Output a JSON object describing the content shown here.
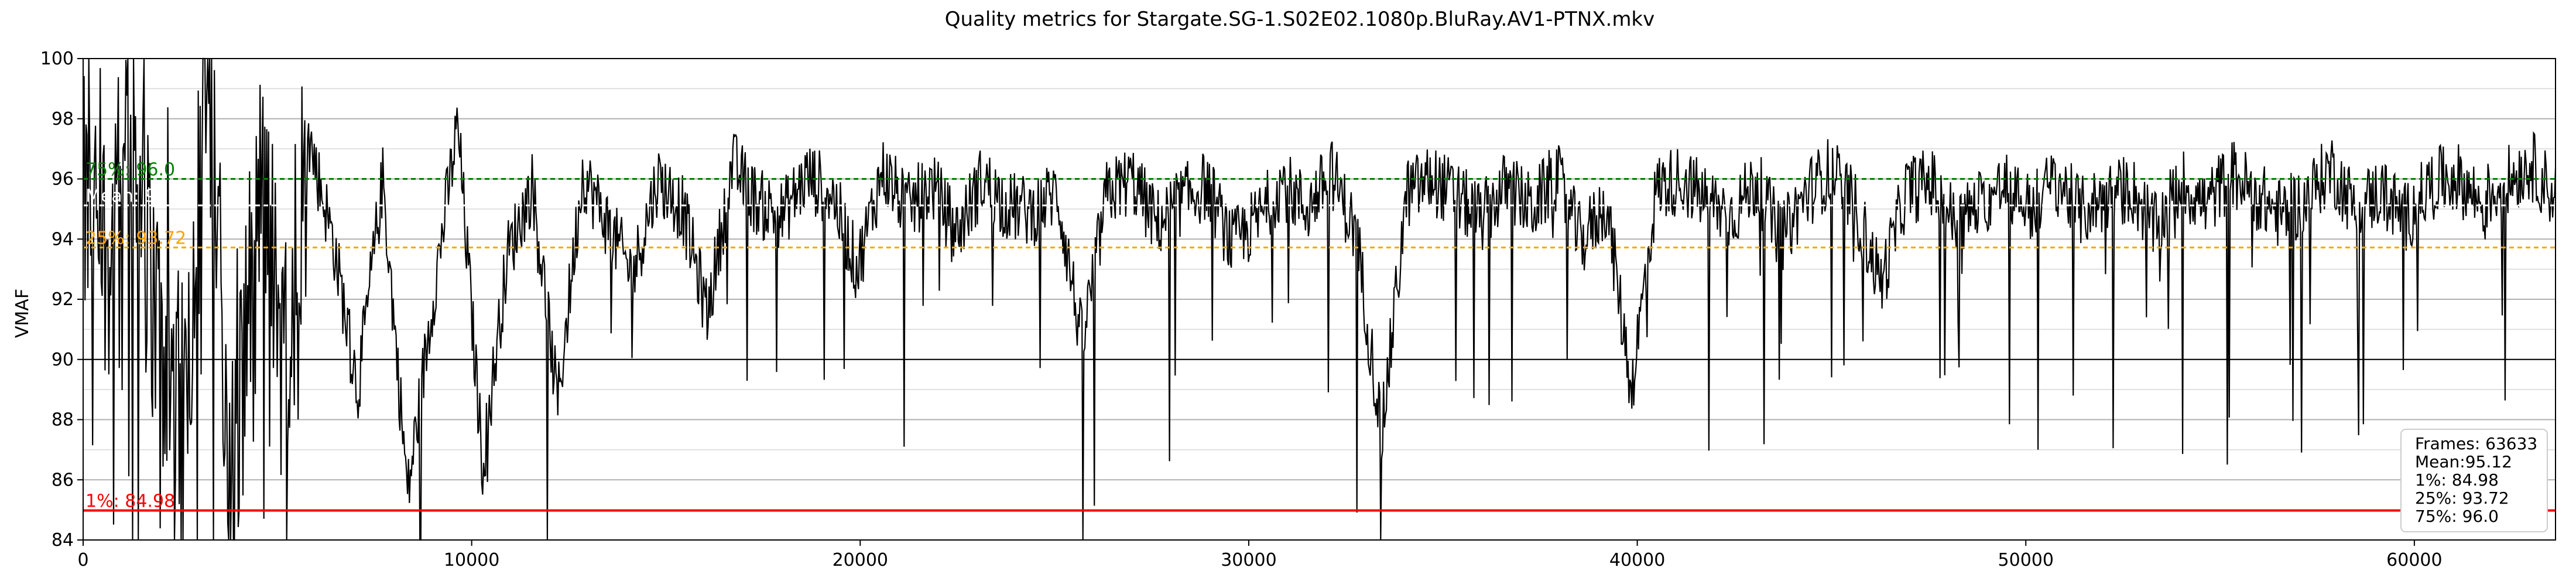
{
  "chart_data": {
    "type": "line",
    "title": "Quality metrics for Stargate.SG-1.S02E02.1080p.BluRay.AV1-PTNX.mkv",
    "xlabel": "",
    "ylabel": "VMAF",
    "xlim": [
      0,
      63633
    ],
    "ylim": [
      84,
      100
    ],
    "x_ticks": [
      0,
      10000,
      20000,
      30000,
      40000,
      50000,
      60000
    ],
    "y_ticks": [
      84,
      86,
      88,
      90,
      92,
      94,
      96,
      98,
      100
    ],
    "grid": "y-major-and-minor",
    "line_color": "#000000",
    "series": [
      {
        "values_sampled": [
          95.0,
          93.8,
          96.5,
          91.2,
          88.0,
          99.5,
          86.0,
          95.5,
          90.0,
          97.5,
          94.0,
          89.0,
          96.0,
          85.5,
          92.0,
          97.8,
          86.5,
          93.5,
          95.8,
          88.5,
          96.2,
          94.5,
          92.8,
          96.0,
          95.0,
          91.5,
          96.5,
          95.2,
          94.8,
          96.1,
          95.5,
          93.0,
          96.3,
          95.0,
          95.8,
          94.2,
          96.0,
          95.1,
          94.9,
          95.6,
          90.5,
          95.5,
          96.0,
          94.5,
          95.3,
          95.8,
          93.8,
          94.6,
          95.9,
          95.0,
          96.2,
          94.1,
          87.5,
          95.5,
          96.0,
          95.4,
          94.7,
          95.8,
          95.0,
          96.1,
          93.9,
          95.2,
          89.0,
          95.7,
          96.0,
          95.3,
          94.8,
          95.9,
          94.0,
          95.5,
          96.3,
          95.0,
          92.5,
          95.6,
          95.9,
          94.5,
          95.2,
          95.8,
          95.0,
          96.0,
          94.9,
          95.4,
          95.7,
          94.3,
          95.9,
          95.1,
          96.2,
          95.5,
          94.8,
          95.3,
          96.4,
          95.0,
          95.6,
          94.7,
          95.8,
          96.1,
          95.2,
          95.9,
          96.5,
          95.4
        ]
      }
    ],
    "mean": 95.12,
    "p1": 84.98,
    "p25": 93.72,
    "p75": 96.0,
    "frames": 63633,
    "hlines": [
      {
        "label": "75%: 96.0",
        "value": 96.0,
        "color": "#008000",
        "style": "dotted"
      },
      {
        "label": "Mean: 95.12",
        "value": 95.12,
        "color": "#ffffff",
        "style": "dotted"
      },
      {
        "label": "25%: 93.72",
        "value": 93.72,
        "color": "#ffa500",
        "style": "dotted"
      },
      {
        "label": "1%: 84.98",
        "value": 84.98,
        "color": "#ff0000",
        "style": "solid"
      }
    ],
    "stats_box": [
      "Frames: 63633",
      "Mean:95.12",
      "1%: 84.98",
      "25%: 93.72",
      "75%: 96.0"
    ],
    "legend_placement": "bottom-right"
  }
}
